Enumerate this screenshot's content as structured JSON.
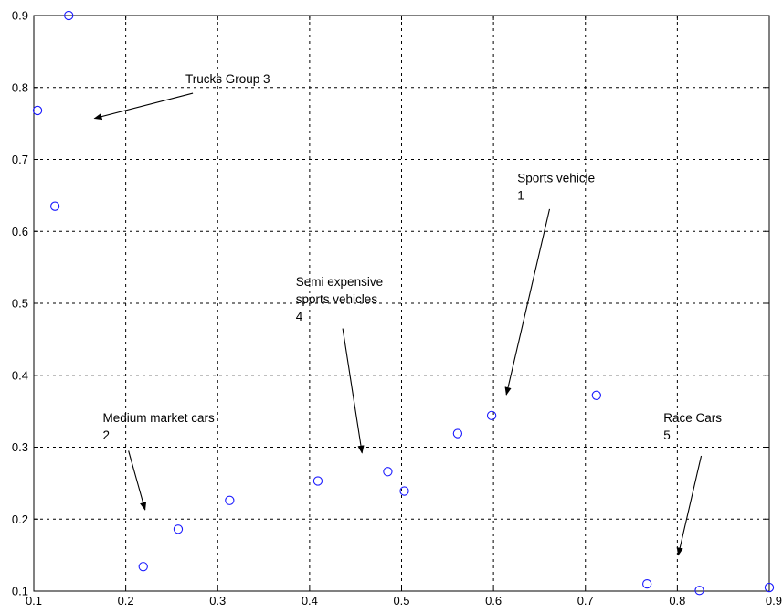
{
  "chart_data": {
    "type": "scatter",
    "xlim": [
      0.1,
      0.9
    ],
    "ylim": [
      0.1,
      0.9
    ],
    "xticks": [
      "0.1",
      "0.2",
      "0.3",
      "0.4",
      "0.5",
      "0.6",
      "0.7",
      "0.8",
      "0.9"
    ],
    "yticks": [
      "0.1",
      "0.2",
      "0.3",
      "0.4",
      "0.5",
      "0.6",
      "0.7",
      "0.8",
      "0.9"
    ],
    "grid": true,
    "marker_color": "#1a1aff",
    "points": [
      {
        "x": 0.138,
        "y": 0.9
      },
      {
        "x": 0.104,
        "y": 0.768
      },
      {
        "x": 0.123,
        "y": 0.635
      },
      {
        "x": 0.219,
        "y": 0.134
      },
      {
        "x": 0.257,
        "y": 0.186
      },
      {
        "x": 0.313,
        "y": 0.226
      },
      {
        "x": 0.409,
        "y": 0.253
      },
      {
        "x": 0.485,
        "y": 0.266
      },
      {
        "x": 0.503,
        "y": 0.239
      },
      {
        "x": 0.561,
        "y": 0.319
      },
      {
        "x": 0.598,
        "y": 0.344
      },
      {
        "x": 0.712,
        "y": 0.372
      },
      {
        "x": 0.767,
        "y": 0.11
      },
      {
        "x": 0.824,
        "y": 0.101
      },
      {
        "x": 0.9,
        "y": 0.105
      }
    ],
    "annotations": [
      {
        "lines": [
          "Trucks Group 3"
        ],
        "text_at": [
          0.265,
          0.806
        ],
        "arrow_from": [
          0.273,
          0.792
        ],
        "arrow_to": [
          0.166,
          0.757
        ]
      },
      {
        "lines": [
          "Medium market cars",
          "2"
        ],
        "text_at": [
          0.175,
          0.335
        ],
        "arrow_from": [
          0.203,
          0.295
        ],
        "arrow_to": [
          0.221,
          0.213
        ]
      },
      {
        "lines": [
          "Semi expensive",
          "sports vehicles",
          "4"
        ],
        "text_at": [
          0.385,
          0.524
        ],
        "arrow_from": [
          0.436,
          0.465
        ],
        "arrow_to": [
          0.457,
          0.292
        ]
      },
      {
        "lines": [
          "Sports vehicle",
          "1"
        ],
        "text_at": [
          0.626,
          0.668
        ],
        "arrow_from": [
          0.661,
          0.631
        ],
        "arrow_to": [
          0.614,
          0.373
        ]
      },
      {
        "lines": [
          "Race Cars",
          "5"
        ],
        "text_at": [
          0.785,
          0.335
        ],
        "arrow_from": [
          0.826,
          0.288
        ],
        "arrow_to": [
          0.801,
          0.15
        ]
      }
    ]
  }
}
